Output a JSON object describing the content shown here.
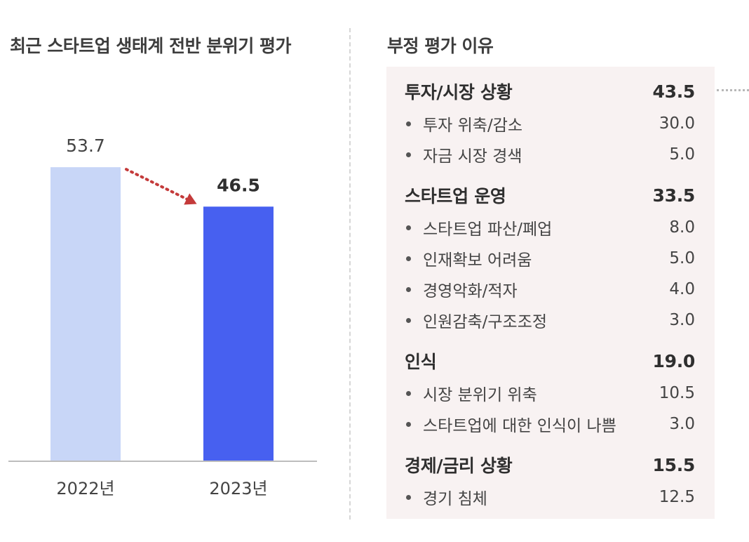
{
  "left_title": "최근 스타트업 생태계 전반 분위기 평가",
  "right_title": "부정 평가 이유",
  "colors": {
    "bar_2022": "#c8d6f7",
    "bar_2023": "#4760f0",
    "arrow": "#c43a3a",
    "axis": "#bdbdbd"
  },
  "chart_data": [
    {
      "type": "bar",
      "title": "최근 스타트업 생태계 전반 분위기 평가",
      "categories": [
        "2022년",
        "2023년"
      ],
      "values": [
        53.7,
        46.5
      ],
      "value_labels": [
        "53.7",
        "46.5"
      ],
      "ylim": [
        0,
        60
      ],
      "grid": false,
      "annotation": "arrow from 2022 bar to 2023 bar (decline)"
    },
    {
      "type": "table",
      "title": "부정 평가 이유",
      "rows": [
        {
          "kind": "category",
          "label": "투자/시장 상황",
          "value": "43.5"
        },
        {
          "kind": "item",
          "label": "투자 위축/감소",
          "value": "30.0"
        },
        {
          "kind": "item",
          "label": "자금 시장 경색",
          "value": "5.0"
        },
        {
          "kind": "category",
          "label": "스타트업 운영",
          "value": "33.5"
        },
        {
          "kind": "item",
          "label": "스타트업 파산/폐업",
          "value": "8.0"
        },
        {
          "kind": "item",
          "label": "인재확보 어려움",
          "value": "5.0"
        },
        {
          "kind": "item",
          "label": "경영악화/적자",
          "value": "4.0"
        },
        {
          "kind": "item",
          "label": "인원감축/구조조정",
          "value": "3.0"
        },
        {
          "kind": "category",
          "label": "인식",
          "value": "19.0"
        },
        {
          "kind": "item",
          "label": "시장 분위기 위축",
          "value": "10.5"
        },
        {
          "kind": "item",
          "label": "스타트업에 대한 인식이 나쁨",
          "value": "3.0"
        },
        {
          "kind": "category",
          "label": "경제/금리 상황",
          "value": "15.5"
        },
        {
          "kind": "item",
          "label": "경기 침체",
          "value": "12.5"
        }
      ]
    }
  ]
}
